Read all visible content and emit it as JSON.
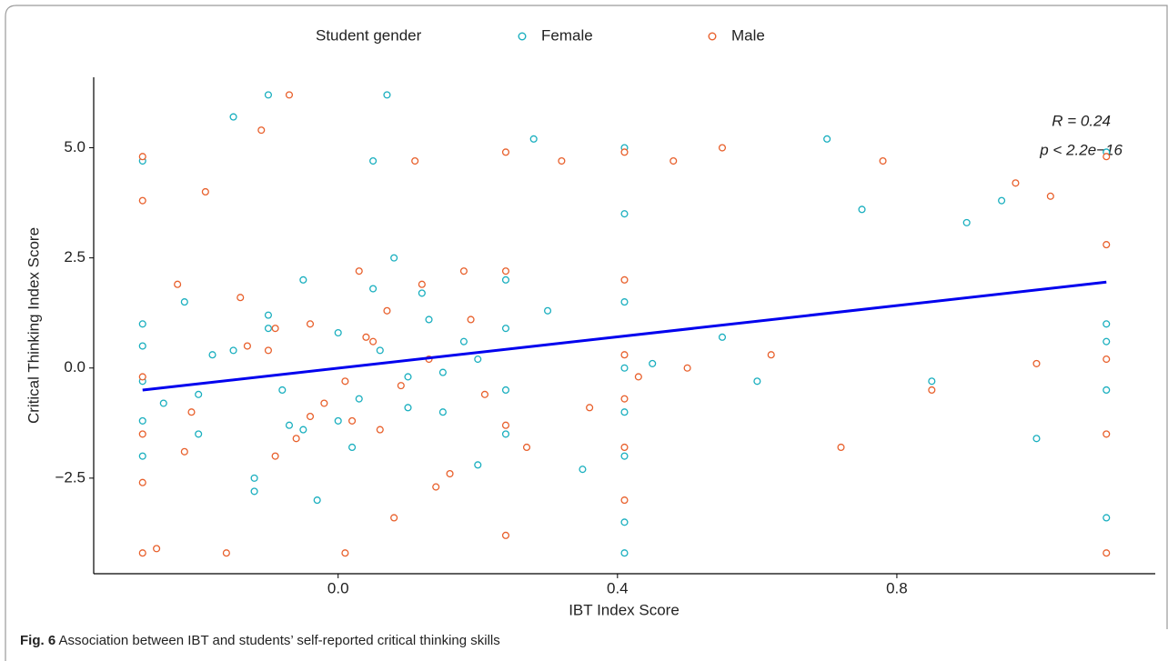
{
  "chart_data": {
    "type": "scatter",
    "legend_title": "Student gender",
    "x_label": "IBT Index Score",
    "y_label": "Critical Thinking Index Score",
    "annotations": [
      "R = 0.24",
      "p < 2.2e−16"
    ],
    "caption_label": "Fig. 6",
    "caption": "Association between IBT and students’ self-reported critical thinking skills",
    "xlim": [
      -0.35,
      1.17
    ],
    "ylim": [
      -4.67,
      6.6
    ],
    "xticks": [
      {
        "value": 0,
        "label": "0.0"
      },
      {
        "value": 0.4,
        "label": "0.4"
      },
      {
        "value": 0.8,
        "label": "0.8"
      }
    ],
    "yticks": [
      {
        "value": -2.5,
        "label": "−2.5"
      },
      {
        "value": 0,
        "label": "0.0"
      },
      {
        "value": 2.5,
        "label": "2.5"
      },
      {
        "value": 5,
        "label": "5.0"
      }
    ],
    "legend_position": "top",
    "series": [
      {
        "name": "Female",
        "color": "#1aafbf",
        "x": [
          -0.28,
          -0.28,
          -0.28,
          -0.28,
          -0.28,
          -0.28,
          -0.25,
          -0.22,
          -0.2,
          -0.18,
          -0.15,
          -0.12,
          -0.1,
          -0.1,
          -0.08,
          -0.05,
          -0.03,
          0,
          0.02,
          0.05,
          0.07,
          0.1,
          0.12,
          0.15,
          0.18,
          0.2,
          0.24,
          0.24,
          0.24,
          0.24,
          0.28,
          0.3,
          0.35,
          0.41,
          0.41,
          0.41,
          0.41,
          0.41,
          0.41,
          0.41,
          0.41,
          0.45,
          0.55,
          0.6,
          0.7,
          0.75,
          0.85,
          0.9,
          0.95,
          1.0,
          1.1,
          1.1,
          1.1,
          1.1,
          1.1,
          -0.15,
          -0.05,
          0.05,
          0.1,
          0.2,
          -0.2,
          -0.1,
          0,
          0.08,
          0.15,
          -0.12,
          0.03,
          0.13,
          -0.07,
          0.06
        ],
        "values": [
          0.5,
          -1.2,
          -2.0,
          1.0,
          -0.3,
          4.7,
          -0.8,
          1.5,
          -1.5,
          0.3,
          5.7,
          -2.5,
          6.2,
          1.2,
          -0.5,
          2.0,
          -3.0,
          0.8,
          -1.8,
          4.7,
          6.2,
          -0.2,
          1.7,
          -1.0,
          0.6,
          -2.2,
          2.0,
          -0.5,
          -1.5,
          0.9,
          5.2,
          1.3,
          -2.3,
          5.0,
          3.5,
          1.5,
          0.0,
          -1.0,
          -2.0,
          -3.5,
          -4.2,
          0.1,
          0.7,
          -0.3,
          5.2,
          3.6,
          -0.3,
          3.3,
          3.8,
          -1.6,
          4.9,
          1.0,
          -0.5,
          -3.4,
          0.6,
          0.4,
          -1.4,
          1.8,
          -0.9,
          0.2,
          -0.6,
          0.9,
          -1.2,
          2.5,
          -0.1,
          -2.8,
          -0.7,
          1.1,
          -1.3,
          0.4
        ]
      },
      {
        "name": "Male",
        "color": "#e8602c",
        "x": [
          -0.28,
          -0.28,
          -0.28,
          -0.28,
          -0.28,
          -0.28,
          -0.26,
          -0.23,
          -0.21,
          -0.19,
          -0.16,
          -0.13,
          -0.11,
          -0.09,
          -0.07,
          -0.04,
          -0.02,
          0.01,
          0.03,
          0.06,
          0.08,
          0.11,
          0.13,
          0.16,
          0.19,
          0.21,
          0.24,
          0.24,
          0.24,
          0.24,
          0.27,
          0.32,
          0.36,
          0.41,
          0.41,
          0.41,
          0.41,
          0.41,
          0.41,
          0.43,
          0.48,
          0.55,
          0.62,
          0.72,
          0.78,
          0.85,
          0.97,
          1.0,
          1.02,
          1.1,
          1.1,
          1.1,
          1.1,
          1.1,
          -0.14,
          -0.04,
          0.04,
          0.09,
          0.18,
          -0.22,
          -0.09,
          0.01,
          0.07,
          0.14,
          -0.1,
          0.02,
          0.12,
          -0.06,
          0.05,
          0.5
        ],
        "values": [
          4.8,
          3.8,
          -0.2,
          -1.5,
          -2.6,
          -4.2,
          -4.1,
          1.9,
          -1.0,
          4.0,
          -4.2,
          0.5,
          5.4,
          -2.0,
          6.2,
          1.0,
          -0.8,
          -4.2,
          2.2,
          -1.4,
          -3.4,
          4.7,
          0.2,
          -2.4,
          1.1,
          -0.6,
          4.9,
          2.2,
          -1.3,
          -3.8,
          -1.8,
          4.7,
          -0.9,
          4.9,
          2.0,
          0.3,
          -0.7,
          -1.8,
          -3.0,
          -0.2,
          4.7,
          5.0,
          0.3,
          -1.8,
          4.7,
          -0.5,
          4.2,
          0.1,
          3.9,
          4.8,
          2.8,
          0.2,
          -1.5,
          -4.2,
          1.6,
          -1.1,
          0.7,
          -0.4,
          2.2,
          -1.9,
          0.9,
          -0.3,
          1.3,
          -2.7,
          0.4,
          -1.2,
          1.9,
          -1.6,
          0.6,
          0.0
        ]
      }
    ],
    "fit": {
      "color": "#0000ee",
      "x": [
        -0.28,
        1.1
      ],
      "values": [
        -0.5,
        1.95
      ]
    }
  }
}
